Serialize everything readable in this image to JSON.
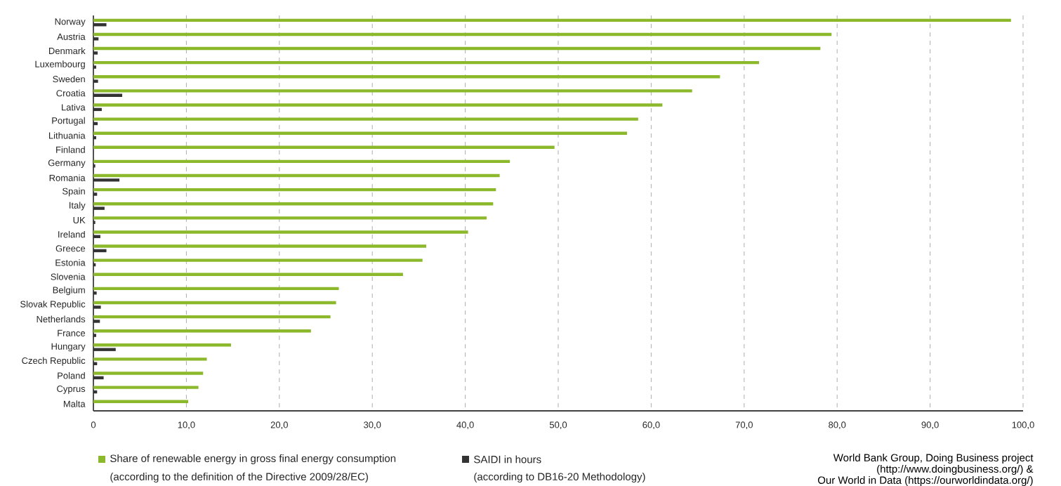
{
  "chart_data": {
    "type": "bar",
    "orientation": "horizontal",
    "categories": [
      "Norway",
      "Austria",
      "Denmark",
      "Luxembourg",
      "Sweden",
      "Croatia",
      "Lativa",
      "Portugal",
      "Lithuania",
      "Finland",
      "Germany",
      "Romania",
      "Spain",
      "Italy",
      "UK",
      "Ireland",
      "Greece",
      "Estonia",
      "Slovenia",
      "Belgium",
      "Slovak Republic",
      "Netherlands",
      "France",
      "Hungary",
      "Czech Republic",
      "Poland",
      "Cyprus",
      "Malta"
    ],
    "series": [
      {
        "name": "Share of renewable energy in gross final energy consumption",
        "color": "#8cb82b",
        "values": [
          98.7,
          79.4,
          78.2,
          71.6,
          67.4,
          64.4,
          61.2,
          58.6,
          57.4,
          49.6,
          44.8,
          43.7,
          43.3,
          43.0,
          42.3,
          40.3,
          35.8,
          35.4,
          33.3,
          26.4,
          26.1,
          25.5,
          23.4,
          14.8,
          12.2,
          11.8,
          11.3,
          10.2
        ]
      },
      {
        "name": "SAIDI in hours",
        "color": "#333333",
        "values": [
          1.4,
          0.55,
          0.46,
          0.3,
          0.5,
          3.1,
          0.9,
          0.46,
          0.3,
          null,
          0.2,
          2.8,
          0.4,
          1.2,
          0.2,
          0.75,
          1.4,
          0.25,
          null,
          0.35,
          0.8,
          0.7,
          0.3,
          2.4,
          0.4,
          1.1,
          0.4,
          null
        ]
      }
    ],
    "xlim": [
      0,
      100
    ],
    "xticks": [
      {
        "value": 0,
        "label": "0"
      },
      {
        "value": 10,
        "label": "10,0"
      },
      {
        "value": 20,
        "label": "20,0"
      },
      {
        "value": 30,
        "label": "30,0"
      },
      {
        "value": 40,
        "label": "40,0"
      },
      {
        "value": 50,
        "label": "50,0"
      },
      {
        "value": 60,
        "label": "60,0"
      },
      {
        "value": 70,
        "label": "70,0"
      },
      {
        "value": 80,
        "label": "80,0"
      },
      {
        "value": 90,
        "label": "90,0"
      },
      {
        "value": 100,
        "label": "100,0"
      }
    ],
    "grid": "x",
    "legend": "bottom",
    "annotations": [
      "(according to the definition of the Directive 2009/28/EC)",
      "(according to DB16-20 Methodology)",
      "World Bank Group, Doing Business project",
      "(http://www.doingbusiness.org/) &",
      "Our World in Data (https://ourworldindata.org/)"
    ]
  }
}
